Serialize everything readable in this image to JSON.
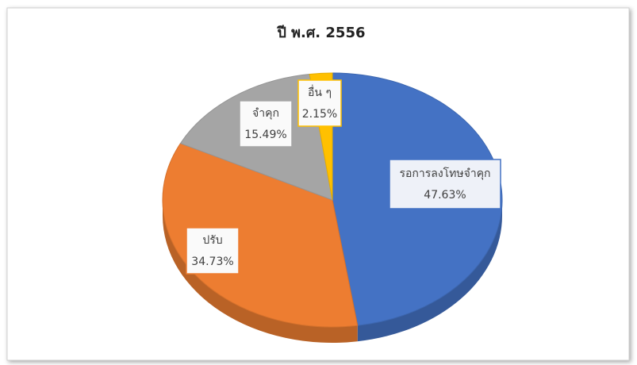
{
  "chart_data": {
    "type": "pie",
    "title": "ปี พ.ศ. 2556",
    "categories": [
      "รอการลงโทษจำคุก",
      "ปรับ",
      "จำคุก",
      "อื่น ๆ"
    ],
    "values": [
      47.63,
      34.73,
      15.49,
      2.15
    ],
    "value_labels": [
      "47.63%",
      "34.73%",
      "15.49%",
      "2.15%"
    ],
    "colors": [
      "#4472c4",
      "#ed7d31",
      "#a5a5a5",
      "#ffc000"
    ]
  }
}
